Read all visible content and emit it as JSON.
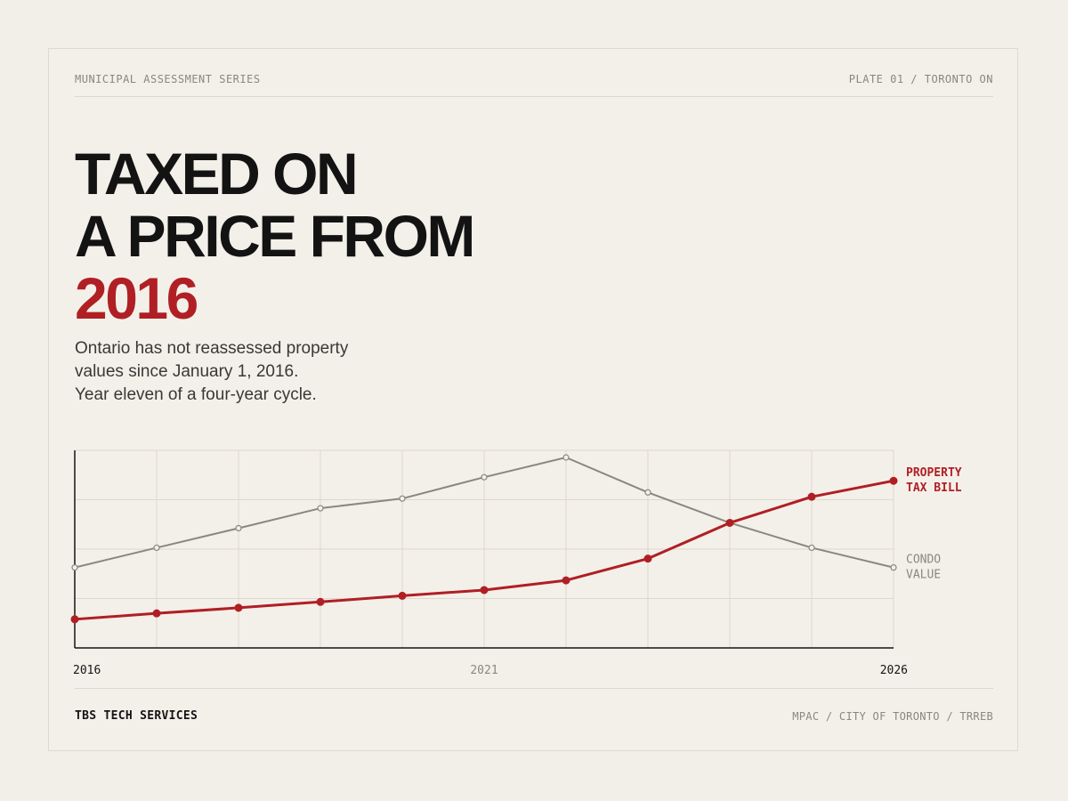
{
  "header": {
    "series_label": "MUNICIPAL ASSESSMENT SERIES",
    "plate_label": "PLATE 01 / TORONTO ON"
  },
  "headline": {
    "line1": "TAXED ON",
    "line2": "A PRICE FROM",
    "line3": "2016"
  },
  "subtitle": {
    "line1": "Ontario has not reassessed property",
    "line2": "values since January 1, 2016.",
    "line3": "Year eleven of a four-year cycle."
  },
  "footer": {
    "brand": "TBS TECH SERVICES",
    "sources": "MPAC / CITY OF TORONTO / TRREB"
  },
  "colors": {
    "accent": "#b01f24",
    "muted_line": "#8a8680",
    "grid": "#dcd8cf",
    "axis": "#141414"
  },
  "chart_data": {
    "type": "line",
    "x": [
      2016,
      2017,
      2018,
      2019,
      2020,
      2021,
      2022,
      2023,
      2024,
      2025,
      2026
    ],
    "x_tick_labels": [
      {
        "value": 2016,
        "label": "2016"
      },
      {
        "value": 2021,
        "label": "2021"
      },
      {
        "value": 2026,
        "label": "2026"
      }
    ],
    "xlim": [
      2016,
      2026
    ],
    "ylim": [
      0,
      100
    ],
    "grid": true,
    "series": [
      {
        "name_lines": [
          "PROPERTY",
          "TAX BILL"
        ],
        "color": "#b01f24",
        "values": [
          14.5,
          17.5,
          20.3,
          23.3,
          26.4,
          29.3,
          34.2,
          45.2,
          63.3,
          76.5,
          84.6
        ]
      },
      {
        "name_lines": [
          "CONDO",
          "VALUE"
        ],
        "color": "#8a8680",
        "values": [
          40.7,
          50.7,
          60.6,
          70.7,
          75.6,
          86.4,
          96.4,
          78.7,
          63.3,
          50.7,
          40.7
        ]
      }
    ]
  }
}
